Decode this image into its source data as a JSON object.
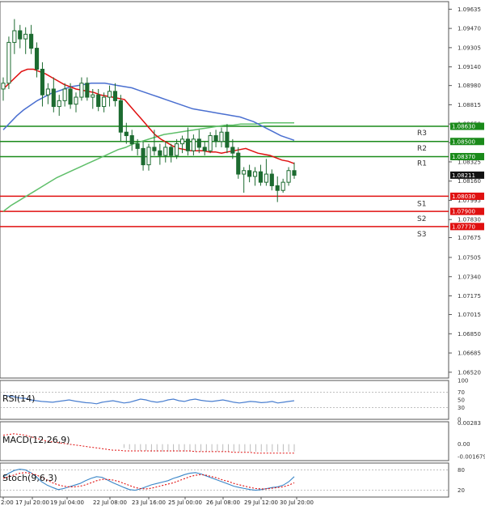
{
  "chart_data": {
    "type": "candlestick",
    "main": {
      "ylim": [
        1.0647,
        1.097
      ],
      "y_ticks": [
        "1.09635",
        "1.09470",
        "1.09305",
        "1.09140",
        "1.08980",
        "1.08815",
        "1.08650",
        "1.08490",
        "1.08325",
        "1.08160",
        "1.07995",
        "1.07830",
        "1.07675",
        "1.07505",
        "1.07340",
        "1.07175",
        "1.07015",
        "1.06850",
        "1.06685",
        "1.06520"
      ],
      "last_price": "1.08211",
      "resistance": [
        {
          "name": "R1",
          "value": 1.0837,
          "label": "1.08370",
          "color": "#1a8a1a"
        },
        {
          "name": "R2",
          "value": 1.085,
          "label": "1.08500",
          "color": "#1a8a1a"
        },
        {
          "name": "R3",
          "value": 1.0863,
          "label": "1.08630",
          "color": "#1a8a1a"
        }
      ],
      "support": [
        {
          "name": "S1",
          "value": 1.0803,
          "label": "1.08030",
          "color": "#e01010"
        },
        {
          "name": "S2",
          "value": 1.079,
          "label": "1.07900",
          "color": "#e01010"
        },
        {
          "name": "S3",
          "value": 1.0777,
          "label": "1.07770",
          "color": "#e01010"
        }
      ],
      "candles": [
        [
          1.0895,
          1.0905,
          1.0885,
          1.09
        ],
        [
          1.09,
          1.094,
          1.0895,
          1.0935
        ],
        [
          1.0935,
          1.0955,
          1.0925,
          1.0945
        ],
        [
          1.0945,
          1.095,
          1.093,
          1.0938
        ],
        [
          1.0938,
          1.0948,
          1.0925,
          1.0942
        ],
        [
          1.0942,
          1.095,
          1.0925,
          1.093
        ],
        [
          1.093,
          1.0935,
          1.0905,
          1.0912
        ],
        [
          1.0912,
          1.0918,
          1.088,
          1.089
        ],
        [
          1.089,
          1.09,
          1.0882,
          1.0895
        ],
        [
          1.0895,
          1.0905,
          1.0875,
          1.088
        ],
        [
          1.088,
          1.089,
          1.0872,
          1.0885
        ],
        [
          1.0885,
          1.09,
          1.088,
          1.0895
        ],
        [
          1.0895,
          1.09,
          1.0878,
          1.0882
        ],
        [
          1.0882,
          1.0892,
          1.0875,
          1.0888
        ],
        [
          1.0888,
          1.0905,
          1.0885,
          1.09
        ],
        [
          1.09,
          1.0905,
          1.0885,
          1.0888
        ],
        [
          1.0888,
          1.0895,
          1.0878,
          1.089
        ],
        [
          1.089,
          1.0895,
          1.0876,
          1.088
        ],
        [
          1.088,
          1.0892,
          1.0875,
          1.0888
        ],
        [
          1.0888,
          1.0898,
          1.088,
          1.0893
        ],
        [
          1.0893,
          1.09,
          1.088,
          1.0885
        ],
        [
          1.0885,
          1.089,
          1.085,
          1.0858
        ],
        [
          1.0858,
          1.0866,
          1.0848,
          1.0855
        ],
        [
          1.0855,
          1.086,
          1.0842,
          1.0848
        ],
        [
          1.0848,
          1.0852,
          1.0838,
          1.0844
        ],
        [
          1.0844,
          1.085,
          1.0825,
          1.083
        ],
        [
          1.083,
          1.0848,
          1.0825,
          1.0845
        ],
        [
          1.0845,
          1.086,
          1.0838,
          1.0842
        ],
        [
          1.0842,
          1.0848,
          1.083,
          1.0838
        ],
        [
          1.0838,
          1.085,
          1.0832,
          1.0845
        ],
        [
          1.0845,
          1.0848,
          1.0832,
          1.0838
        ],
        [
          1.0838,
          1.0852,
          1.0835,
          1.0848
        ],
        [
          1.0848,
          1.0855,
          1.084,
          1.0852
        ],
        [
          1.0852,
          1.0862,
          1.0838,
          1.0842
        ],
        [
          1.0842,
          1.0856,
          1.0838,
          1.0852
        ],
        [
          1.0852,
          1.086,
          1.084,
          1.0845
        ],
        [
          1.0845,
          1.085,
          1.0838,
          1.0842
        ],
        [
          1.0842,
          1.0858,
          1.084,
          1.0855
        ],
        [
          1.0855,
          1.086,
          1.0845,
          1.085
        ],
        [
          1.085,
          1.0862,
          1.0845,
          1.0858
        ],
        [
          1.0858,
          1.0865,
          1.084,
          1.0845
        ],
        [
          1.0845,
          1.0852,
          1.0835,
          1.084
        ],
        [
          1.084,
          1.0845,
          1.0818,
          1.0822
        ],
        [
          1.0822,
          1.0828,
          1.0806,
          1.0825
        ],
        [
          1.0825,
          1.083,
          1.0815,
          1.082
        ],
        [
          1.082,
          1.0828,
          1.0812,
          1.0824
        ],
        [
          1.0824,
          1.083,
          1.0812,
          1.0815
        ],
        [
          1.0815,
          1.0835,
          1.0812,
          1.0822
        ],
        [
          1.0822,
          1.0826,
          1.0808,
          1.0812
        ],
        [
          1.0812,
          1.082,
          1.0798,
          1.0808
        ],
        [
          1.0808,
          1.0818,
          1.0806,
          1.0815
        ],
        [
          1.0815,
          1.0828,
          1.0812,
          1.0825
        ],
        [
          1.0825,
          1.0832,
          1.0818,
          1.0821
        ]
      ],
      "ma_red": [
        1.0895,
        1.09,
        1.0905,
        1.091,
        1.0912,
        1.0912,
        1.091,
        1.0908,
        1.0905,
        1.0902,
        1.0899,
        1.0897,
        1.0895,
        1.0894,
        1.0893,
        1.0892,
        1.089,
        1.0889,
        1.0888,
        1.0887,
        1.0886,
        1.088,
        1.0874,
        1.0868,
        1.0862,
        1.0856,
        1.0852,
        1.0849,
        1.0846,
        1.0844,
        1.0843,
        1.0842,
        1.0842,
        1.0842,
        1.0841,
        1.0841,
        1.084,
        1.0841,
        1.0842,
        1.0843,
        1.0844,
        1.0842,
        1.084,
        1.0839,
        1.0838,
        1.0836,
        1.0834,
        1.0833,
        1.0831
      ],
      "ma_blue": [
        1.086,
        1.0866,
        1.0872,
        1.0877,
        1.0881,
        1.0885,
        1.0888,
        1.0891,
        1.0893,
        1.0895,
        1.0897,
        1.0898,
        1.0899,
        1.09,
        1.09,
        1.09,
        1.0899,
        1.0898,
        1.0897,
        1.0896,
        1.0894,
        1.0892,
        1.089,
        1.0888,
        1.0886,
        1.0884,
        1.0882,
        1.088,
        1.0878,
        1.0877,
        1.0876,
        1.0875,
        1.0874,
        1.0873,
        1.0872,
        1.0871,
        1.0869,
        1.0867,
        1.0864,
        1.0861,
        1.0858,
        1.0855,
        1.0853,
        1.0851
      ],
      "ma_green": [
        1.079,
        1.0795,
        1.0799,
        1.0803,
        1.0807,
        1.0811,
        1.0815,
        1.0819,
        1.0822,
        1.0825,
        1.0828,
        1.0831,
        1.0834,
        1.0837,
        1.084,
        1.0843,
        1.0845,
        1.0848,
        1.085,
        1.0852,
        1.0854,
        1.0856,
        1.0857,
        1.0858,
        1.0859,
        1.086,
        1.0861,
        1.0862,
        1.0863,
        1.0864,
        1.0864,
        1.0865,
        1.0865,
        1.0865,
        1.0866,
        1.0866,
        1.0866,
        1.0866,
        1.0866
      ]
    },
    "x_ticks": [
      "2:00",
      "17 Jul 20:00",
      "19 Jul 04:00",
      "22 Jul 08:00",
      "23 Jul 16:00",
      "25 Jul 00:00",
      "26 Jul 08:00",
      "29 Jul 12:00",
      "30 Jul 20:00"
    ],
    "rsi": {
      "title": "RSI(14)",
      "ylim": [
        0,
        100
      ],
      "ticks": [
        "100",
        "70",
        "50",
        "30",
        "0"
      ],
      "values": [
        62,
        60,
        58,
        55,
        54,
        50,
        48,
        46,
        45,
        44,
        46,
        48,
        50,
        47,
        45,
        43,
        42,
        40,
        44,
        46,
        48,
        45,
        42,
        44,
        48,
        52,
        50,
        46,
        44,
        46,
        50,
        52,
        48,
        46,
        50,
        52,
        49,
        47,
        46,
        48,
        50,
        47,
        44,
        42,
        44,
        46,
        45,
        43,
        44,
        46,
        42,
        44,
        46,
        48
      ]
    },
    "macd": {
      "title": "MACD(12,26,9)",
      "ticks": [
        "0.00283",
        "0.00",
        "-0.001679"
      ],
      "ylim": [
        -0.0022,
        0.003
      ],
      "signal": [
        0.0012,
        0.0013,
        0.0014,
        0.0013,
        0.0012,
        0.001,
        0.0008,
        0.0006,
        0.0004,
        0.0003,
        0.0002,
        0.0001,
        0.0,
        -0.0001,
        -0.0002,
        -0.0003,
        -0.0004,
        -0.0005,
        -0.0006,
        -0.0007,
        -0.0008,
        -0.0008,
        -0.0009,
        -0.0009,
        -0.0009,
        -0.0009,
        -0.0009,
        -0.0009,
        -0.0009,
        -0.0009,
        -0.0009,
        -0.0009,
        -0.0009,
        -0.0009,
        -0.0009,
        -0.001,
        -0.001,
        -0.001,
        -0.001,
        -0.001,
        -0.001,
        -0.001,
        -0.0011,
        -0.0011,
        -0.0011,
        -0.0011,
        -0.0012,
        -0.0012,
        -0.0012,
        -0.0012,
        -0.0012,
        -0.0012,
        -0.0012,
        -0.0012
      ],
      "hist": [
        0,
        0,
        0,
        0,
        0,
        0,
        0,
        0,
        0,
        0,
        0,
        0,
        0,
        0,
        0,
        0,
        0,
        0,
        0,
        0,
        0,
        0,
        -0.0005,
        -0.0007,
        -0.0008,
        -0.0009,
        -0.0009,
        -0.001,
        -0.001,
        -0.001,
        -0.001,
        -0.001,
        -0.001,
        -0.001,
        -0.001,
        -0.001,
        -0.001,
        -0.001,
        -0.001,
        -0.001,
        -0.001,
        -0.001,
        -0.001,
        -0.001,
        -0.001,
        -0.001,
        -0.001,
        -0.001,
        -0.001,
        -0.001,
        -0.001,
        -0.001,
        -0.001,
        -0.001
      ]
    },
    "stoch": {
      "title": "Stoch(9,6,3)",
      "ylim": [
        0,
        100
      ],
      "ticks": [
        "80",
        "20"
      ],
      "k": [
        60,
        70,
        78,
        82,
        80,
        72,
        60,
        45,
        35,
        28,
        22,
        25,
        30,
        35,
        40,
        48,
        55,
        60,
        58,
        50,
        42,
        35,
        28,
        22,
        20,
        24,
        30,
        36,
        40,
        44,
        48,
        55,
        60,
        66,
        70,
        72,
        68,
        62,
        56,
        50,
        44,
        38,
        32,
        28,
        25,
        22,
        20,
        22,
        25,
        28,
        30,
        35,
        45,
        60
      ],
      "d": [
        55,
        60,
        65,
        70,
        72,
        70,
        65,
        58,
        50,
        42,
        36,
        32,
        30,
        30,
        32,
        36,
        42,
        48,
        52,
        52,
        50,
        46,
        40,
        34,
        28,
        25,
        24,
        26,
        30,
        34,
        38,
        42,
        48,
        54,
        60,
        64,
        66,
        64,
        60,
        56,
        50,
        46,
        40,
        36,
        32,
        28,
        25,
        24,
        24,
        26,
        28,
        30,
        35,
        42
      ]
    }
  }
}
